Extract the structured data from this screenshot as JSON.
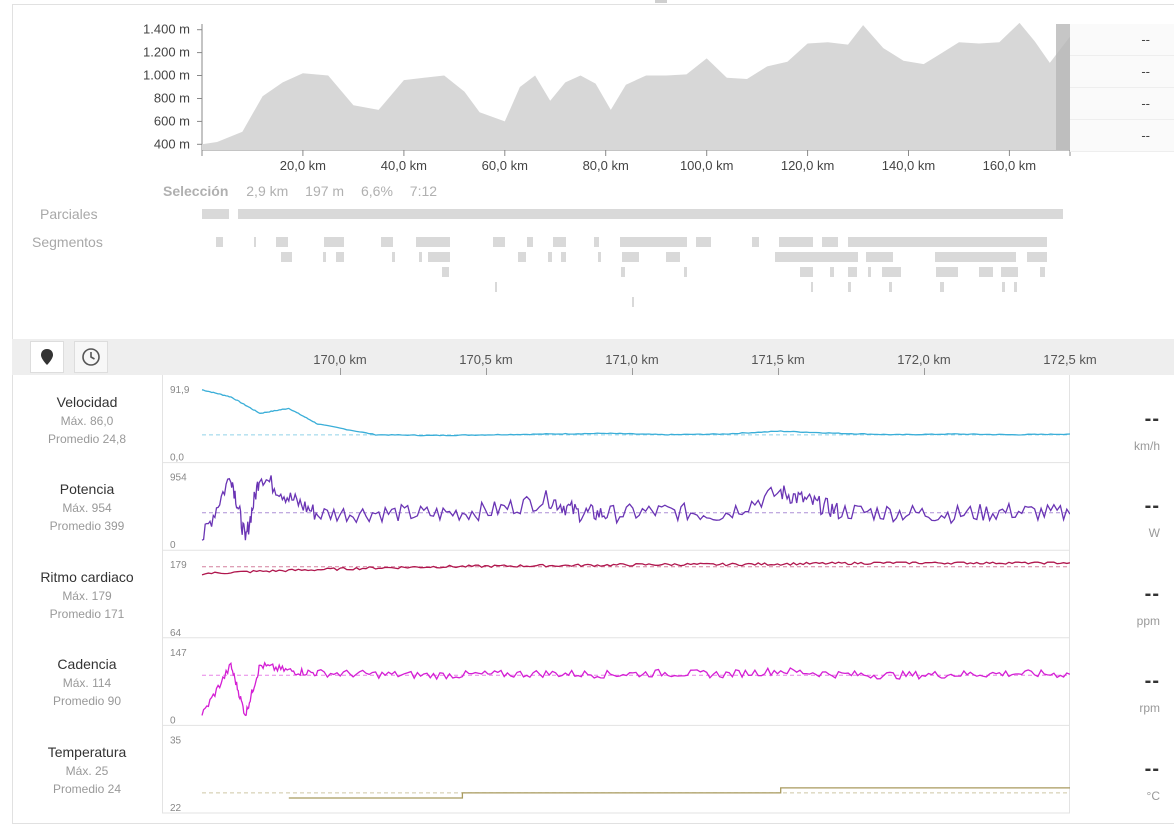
{
  "elevation": {
    "y_ticks": [
      "1.400 m",
      "1.200 m",
      "1.000 m",
      "800 m",
      "600 m",
      "400 m"
    ],
    "x_ticks": [
      "20,0 km",
      "40,0 km",
      "60,0 km",
      "80,0 km",
      "100,0 km",
      "120,0 km",
      "140,0 km",
      "160,0 km"
    ],
    "summary_values": [
      "--",
      "--",
      "--",
      "--"
    ],
    "fill_color": "#d7d7d7"
  },
  "selection": {
    "label": "Selección",
    "distance": "2,9 km",
    "elevation_gain": "197 m",
    "grade": "6,6%",
    "time": "7:12"
  },
  "rows": {
    "parciales": "Parciales",
    "segmentos": "Segmentos"
  },
  "toolbar": {
    "map_icon": "map-pin-icon",
    "clock_icon": "clock-icon",
    "km_ticks": [
      "170,0 km",
      "170,5 km",
      "171,0 km",
      "171,5 km",
      "172,0 km",
      "172,5 km"
    ]
  },
  "panels": [
    {
      "key": "speed",
      "title": "Velocidad",
      "max": "Máx. 86,0",
      "avg": "Promedio 24,8",
      "ytop": "91,9",
      "ybot": "0,0",
      "value": "--",
      "unit": "km/h",
      "color": "#3aaed8"
    },
    {
      "key": "power",
      "title": "Potencia",
      "max": "Máx. 954",
      "avg": "Promedio 399",
      "ytop": "954",
      "ybot": "0",
      "value": "--",
      "unit": "W",
      "color": "#6a34b4"
    },
    {
      "key": "hr",
      "title": "Ritmo cardiaco",
      "max": "Máx. 179",
      "avg": "Promedio 171",
      "ytop": "179",
      "ybot": "64",
      "value": "--",
      "unit": "ppm",
      "color": "#b0174e"
    },
    {
      "key": "cad",
      "title": "Cadencia",
      "max": "Máx. 114",
      "avg": "Promedio 90",
      "ytop": "147",
      "ybot": "0",
      "value": "--",
      "unit": "rpm",
      "color": "#d41fd4"
    },
    {
      "key": "temp",
      "title": "Temperatura",
      "max": "Máx. 25",
      "avg": "Promedio 24",
      "ytop": "35",
      "ybot": "22",
      "value": "--",
      "unit": "°C",
      "color": "#a89a5e"
    }
  ],
  "chart_data": [
    {
      "type": "area",
      "x_unit": "km",
      "x": [
        0,
        3,
        8,
        12,
        16,
        20,
        25,
        30,
        35,
        40,
        44,
        48,
        52,
        55,
        60,
        63,
        66,
        69,
        72,
        75,
        78,
        81,
        84,
        88,
        92,
        96,
        100,
        104,
        108,
        112,
        116,
        120,
        124,
        128,
        131,
        135,
        139,
        143,
        146,
        150,
        154,
        158,
        162,
        165,
        168,
        172
      ],
      "y": [
        400,
        420,
        510,
        820,
        940,
        1020,
        1000,
        740,
        700,
        960,
        980,
        1000,
        860,
        680,
        600,
        900,
        1000,
        780,
        940,
        1000,
        930,
        700,
        920,
        1000,
        1000,
        1010,
        1150,
        980,
        970,
        1080,
        1120,
        1280,
        1290,
        1270,
        1440,
        1240,
        1130,
        1100,
        1180,
        1290,
        1280,
        1290,
        1460,
        1300,
        1110,
        1340
      ],
      "ylim": [
        350,
        1450
      ],
      "xlim": [
        0,
        172
      ]
    },
    {
      "type": "line",
      "name": "Velocidad",
      "x": [
        169.6,
        169.7,
        169.8,
        169.9,
        170.0,
        170.2,
        170.4,
        170.6,
        170.8,
        171.0,
        171.2,
        171.4,
        171.6,
        171.8,
        172.0,
        172.2,
        172.4,
        172.6
      ],
      "y": [
        88,
        78,
        55,
        62,
        40,
        25,
        24,
        25,
        26,
        27,
        25,
        26,
        30,
        27,
        25,
        26,
        25,
        26
      ],
      "ylim": [
        0,
        91.9
      ],
      "average": 24.8
    },
    {
      "type": "line",
      "name": "Potencia",
      "x": [
        169.6,
        169.7,
        169.75,
        169.8,
        169.9,
        170.0,
        170.2,
        170.4,
        170.6,
        170.8,
        170.9,
        171.0,
        171.2,
        171.4,
        171.6,
        171.7,
        171.8,
        172.0,
        172.2,
        172.4,
        172.6
      ],
      "y": [
        0,
        950,
        0,
        954,
        620,
        380,
        400,
        380,
        430,
        600,
        400,
        380,
        420,
        380,
        700,
        560,
        420,
        400,
        380,
        420,
        380
      ],
      "ylim": [
        0,
        954
      ],
      "average": 399
    },
    {
      "type": "line",
      "name": "Ritmo cardiaco",
      "x": [
        169.6,
        169.8,
        170.0,
        170.2,
        170.4,
        170.6,
        170.8,
        171.0,
        171.2,
        171.4,
        171.6,
        171.8,
        172.0,
        172.2,
        172.4,
        172.6
      ],
      "y": [
        159,
        163,
        166,
        169,
        171,
        172,
        173,
        174,
        175,
        175,
        176,
        177,
        178,
        178,
        178,
        178
      ],
      "ylim": [
        64,
        179
      ],
      "average": 171
    },
    {
      "type": "line",
      "name": "Cadencia",
      "x": [
        169.6,
        169.7,
        169.75,
        169.8,
        169.9,
        170.0,
        170.2,
        170.4,
        170.6,
        170.8,
        171.0,
        171.2,
        171.4,
        171.6,
        171.8,
        172.0,
        172.2,
        172.4,
        172.6
      ],
      "y": [
        0,
        112,
        0,
        112,
        100,
        95,
        92,
        90,
        92,
        94,
        92,
        95,
        92,
        100,
        92,
        90,
        92,
        94,
        92
      ],
      "ylim": [
        0,
        147
      ],
      "average": 90
    },
    {
      "type": "line",
      "name": "Temperatura",
      "x": [
        169.6,
        169.9,
        170.1,
        170.4,
        170.5,
        171.0,
        171.5,
        171.6,
        172.0,
        172.6
      ],
      "y": [
        null,
        23,
        23,
        23,
        24,
        24,
        24,
        25,
        25,
        25
      ],
      "ylim": [
        22,
        35
      ],
      "average": 24
    }
  ]
}
